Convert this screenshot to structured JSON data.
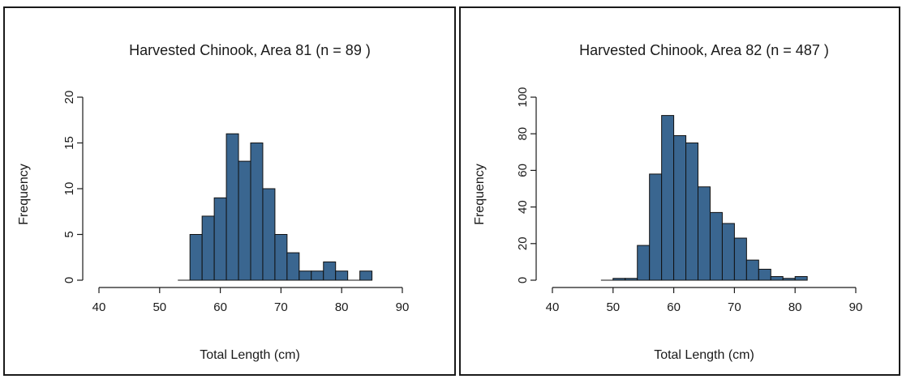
{
  "chart_data": [
    {
      "type": "bar",
      "title": "Harvested Chinook, Area  81  (n = 89 )",
      "xlabel": "Total Length (cm)",
      "ylabel": "Frequency",
      "xlim": [
        40,
        90
      ],
      "ylim": [
        0,
        20
      ],
      "x_ticks": [
        "40",
        "50",
        "60",
        "70",
        "80",
        "90"
      ],
      "y_ticks": [
        "0",
        "5",
        "10",
        "15",
        "20"
      ],
      "bin_width": 2,
      "bins": [
        {
          "x0": 53,
          "x1": 55,
          "count": 0
        },
        {
          "x0": 55,
          "x1": 57,
          "count": 5
        },
        {
          "x0": 57,
          "x1": 59,
          "count": 7
        },
        {
          "x0": 59,
          "x1": 61,
          "count": 9
        },
        {
          "x0": 61,
          "x1": 63,
          "count": 16
        },
        {
          "x0": 63,
          "x1": 65,
          "count": 13
        },
        {
          "x0": 65,
          "x1": 67,
          "count": 15
        },
        {
          "x0": 67,
          "x1": 69,
          "count": 10
        },
        {
          "x0": 69,
          "x1": 71,
          "count": 5
        },
        {
          "x0": 71,
          "x1": 73,
          "count": 3
        },
        {
          "x0": 73,
          "x1": 75,
          "count": 1
        },
        {
          "x0": 75,
          "x1": 77,
          "count": 1
        },
        {
          "x0": 77,
          "x1": 79,
          "count": 2
        },
        {
          "x0": 79,
          "x1": 81,
          "count": 1
        },
        {
          "x0": 81,
          "x1": 83,
          "count": 0
        },
        {
          "x0": 83,
          "x1": 85,
          "count": 1
        }
      ],
      "bar_color": "#3a6690",
      "grid": false,
      "legend": "none"
    },
    {
      "type": "bar",
      "title": "Harvested Chinook, Area  82  (n = 487 )",
      "xlabel": "Total Length (cm)",
      "ylabel": "Frequency",
      "xlim": [
        40,
        90
      ],
      "ylim": [
        0,
        100
      ],
      "x_ticks": [
        "40",
        "50",
        "60",
        "70",
        "80",
        "90"
      ],
      "y_ticks": [
        "0",
        "20",
        "40",
        "60",
        "80",
        "100"
      ],
      "bin_width": 2,
      "bins": [
        {
          "x0": 48,
          "x1": 50,
          "count": 0
        },
        {
          "x0": 50,
          "x1": 52,
          "count": 1
        },
        {
          "x0": 52,
          "x1": 54,
          "count": 1
        },
        {
          "x0": 54,
          "x1": 56,
          "count": 19
        },
        {
          "x0": 56,
          "x1": 58,
          "count": 58
        },
        {
          "x0": 58,
          "x1": 60,
          "count": 90
        },
        {
          "x0": 60,
          "x1": 62,
          "count": 79
        },
        {
          "x0": 62,
          "x1": 64,
          "count": 75
        },
        {
          "x0": 64,
          "x1": 66,
          "count": 51
        },
        {
          "x0": 66,
          "x1": 68,
          "count": 37
        },
        {
          "x0": 68,
          "x1": 70,
          "count": 31
        },
        {
          "x0": 70,
          "x1": 72,
          "count": 23
        },
        {
          "x0": 72,
          "x1": 74,
          "count": 11
        },
        {
          "x0": 74,
          "x1": 76,
          "count": 6
        },
        {
          "x0": 76,
          "x1": 78,
          "count": 2
        },
        {
          "x0": 78,
          "x1": 80,
          "count": 1
        },
        {
          "x0": 80,
          "x1": 82,
          "count": 2
        }
      ],
      "bar_color": "#3a6690",
      "grid": false,
      "legend": "none"
    }
  ]
}
